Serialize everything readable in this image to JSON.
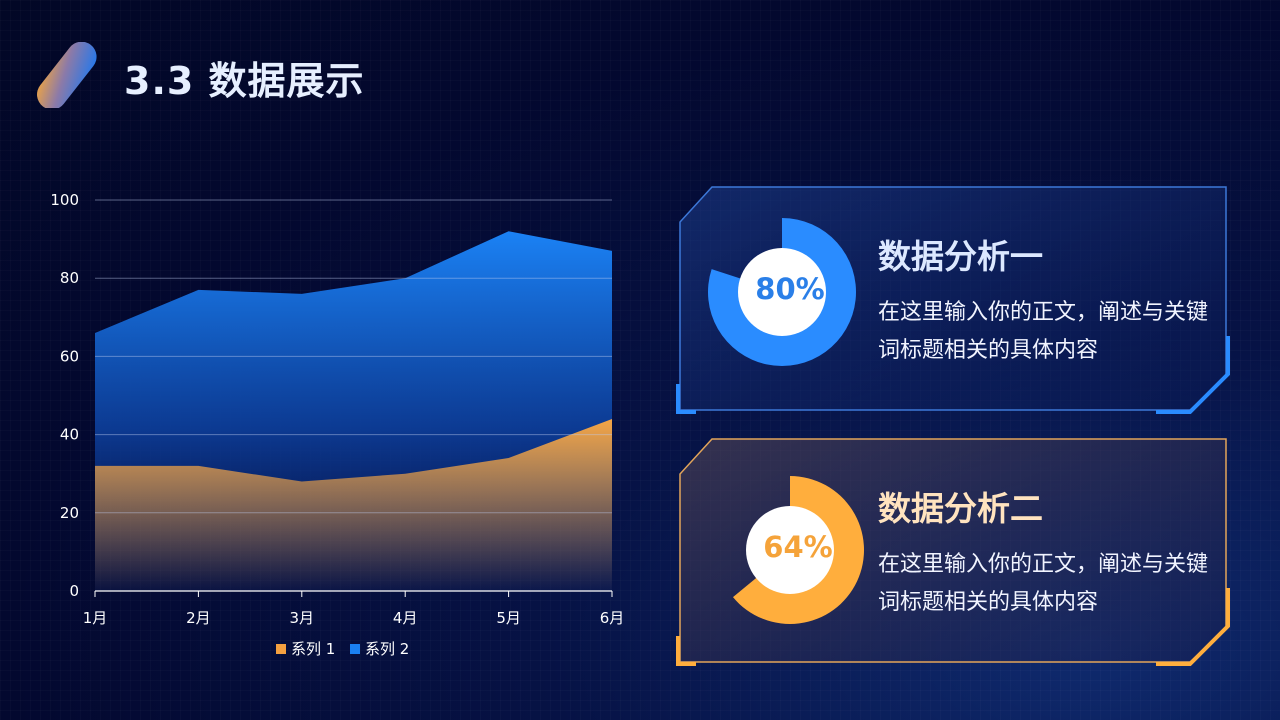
{
  "header": {
    "title": "3.3 数据展示"
  },
  "chart_data": {
    "type": "area",
    "categories": [
      "1月",
      "2月",
      "3月",
      "4月",
      "5月",
      "6月"
    ],
    "series": [
      {
        "name": "系列 1",
        "values": [
          32,
          32,
          28,
          30,
          34,
          44
        ],
        "color": "#f4a040"
      },
      {
        "name": "系列 2",
        "values": [
          66,
          77,
          76,
          80,
          92,
          87
        ],
        "color": "#1a7ff0"
      }
    ],
    "ylim": [
      0,
      100
    ],
    "yticks": [
      0,
      20,
      40,
      60,
      80,
      100
    ],
    "grid": true,
    "legend": "bottom"
  },
  "cards": [
    {
      "title": "数据分析一",
      "percent_label": "80%",
      "percent": 80,
      "text": "在这里输入你的正文，阐述与关键词标题相关的具体内容",
      "accent": "#2a8cff"
    },
    {
      "title": "数据分析二",
      "percent_label": "64%",
      "percent": 64,
      "text": "在这里输入你的正文，阐述与关键词标题相关的具体内容",
      "accent": "#ffae3d"
    }
  ]
}
